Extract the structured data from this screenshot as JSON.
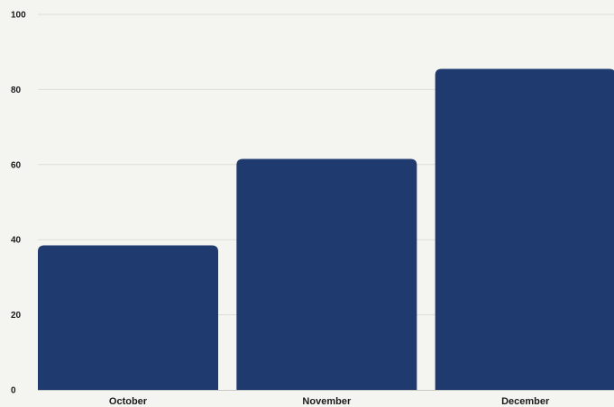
{
  "chart_data": {
    "type": "bar",
    "title": "",
    "xlabel": "",
    "ylabel": "",
    "categories": [
      "October",
      "November",
      "December"
    ],
    "values": [
      38.5,
      61.5,
      85.5
    ],
    "ylim": [
      0,
      100
    ],
    "yticks": [
      "0",
      "20",
      "40",
      "60",
      "80",
      "100"
    ],
    "grid": true,
    "legend": "none",
    "bar_color": "#1f3a6e"
  }
}
